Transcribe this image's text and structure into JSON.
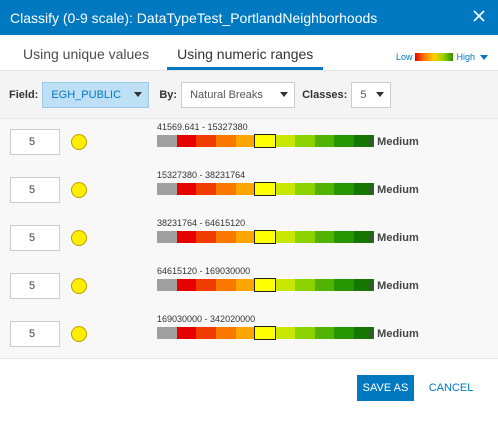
{
  "header": {
    "title": "Classify (0-9 scale): DataTypeTest_PortlandNeighborhoods",
    "close_icon": "close-icon"
  },
  "tabs": [
    {
      "label": "Using unique values",
      "active": false
    },
    {
      "label": "Using numeric ranges",
      "active": true
    }
  ],
  "legend": {
    "low": "Low",
    "high": "High"
  },
  "controls": {
    "field_label": "Field:",
    "field_value": "EGH_PUBLIC",
    "by_label": "By:",
    "by_value": "Natural Breaks",
    "classes_label": "Classes:",
    "classes_value": "5"
  },
  "ramp_colors": [
    "#a0a0a0",
    "#e60000",
    "#f03c00",
    "#fa7800",
    "#ffa500",
    "#ffff00",
    "#c8e600",
    "#8cd200",
    "#50b400",
    "#289600",
    "#147800"
  ],
  "selected_swatch_index": 5,
  "rows": [
    {
      "input": "5",
      "range": "41569.641 - 15327380",
      "value": "5 Medium"
    },
    {
      "input": "5",
      "range": "15327380 - 38231764",
      "value": "5 Medium"
    },
    {
      "input": "5",
      "range": "38231764 - 64615120",
      "value": "5 Medium"
    },
    {
      "input": "5",
      "range": "64615120 - 169030000",
      "value": "5 Medium"
    },
    {
      "input": "5",
      "range": "169030000 - 342020000",
      "value": "5 Medium"
    }
  ],
  "footer": {
    "save_label": "SAVE AS",
    "cancel_label": "CANCEL"
  }
}
